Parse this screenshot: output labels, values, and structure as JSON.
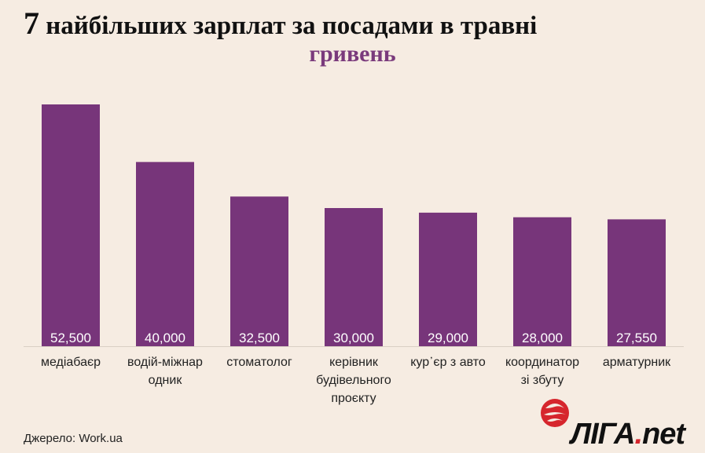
{
  "title_num": "7",
  "title_text": "найбільших зарплат за посадами в травні",
  "subtitle": "гривень",
  "source": "Джерело: Work.ua",
  "logo": {
    "text_main": "ЛІГА",
    "text_dot": ".",
    "text_net": "net"
  },
  "colors": {
    "bar": "#77357a",
    "background": "#f6ece2",
    "accent": "#d6262d"
  },
  "chart_data": {
    "type": "bar",
    "title": "7 найбільших зарплат за посадами в травні",
    "subtitle": "гривень",
    "categories": [
      [
        "медіабаєр"
      ],
      [
        "водій-міжнар",
        "одник"
      ],
      [
        "стоматолог"
      ],
      [
        "керівник",
        "будівельного",
        "проєкту"
      ],
      [
        "кур᾽єр з авто"
      ],
      [
        "координатор",
        "зі збуту"
      ],
      [
        "арматурник"
      ]
    ],
    "values": [
      52500,
      40000,
      32500,
      30000,
      29000,
      28000,
      27550
    ],
    "value_labels": [
      "52,500",
      "40,000",
      "32,500",
      "30,000",
      "29,000",
      "28,000",
      "27,550"
    ],
    "ylim": [
      0,
      52500
    ],
    "grid": false
  }
}
